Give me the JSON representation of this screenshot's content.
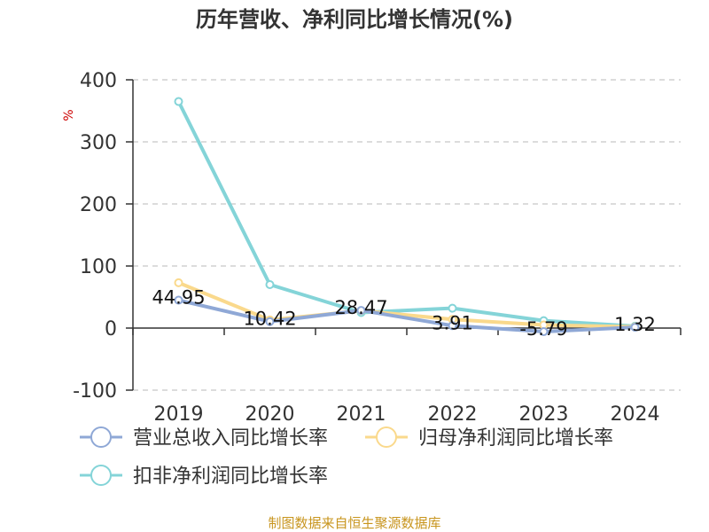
{
  "colors": {
    "revenue": "#8FA8D6",
    "profit": "#FAD98C",
    "deducted": "#84D4D8",
    "axis": "#333333",
    "grid": "#C8C8C8",
    "unit": "#CC0000",
    "source": "#C8951E"
  },
  "chart_data": {
    "type": "line",
    "title": "历年营收、净利同比增长情况(%)",
    "ylabel": "%",
    "xlabel": "",
    "categories": [
      "2019",
      "2020",
      "2021",
      "2022",
      "2023",
      "2024"
    ],
    "ylim": [
      -100,
      400
    ],
    "yticks": [
      -100,
      0,
      100,
      200,
      300,
      400
    ],
    "grid": true,
    "legend_position": "bottom",
    "series": [
      {
        "name": "营业总收入同比增长率",
        "color_key": "revenue",
        "values": [
          44.95,
          10.42,
          28.47,
          3.91,
          -5.79,
          1.32
        ],
        "data_labels": [
          "44.95",
          "10.42",
          "28.47",
          "3.91",
          "-5.79",
          "1.32"
        ]
      },
      {
        "name": "归母净利润同比增长率",
        "color_key": "profit",
        "values": [
          73,
          13,
          28,
          14,
          5,
          2
        ]
      },
      {
        "name": "扣非净利润同比增长率",
        "color_key": "deducted",
        "values": [
          365,
          70,
          25,
          32,
          12,
          3
        ]
      }
    ]
  },
  "source": "制图数据来自恒生聚源数据库"
}
